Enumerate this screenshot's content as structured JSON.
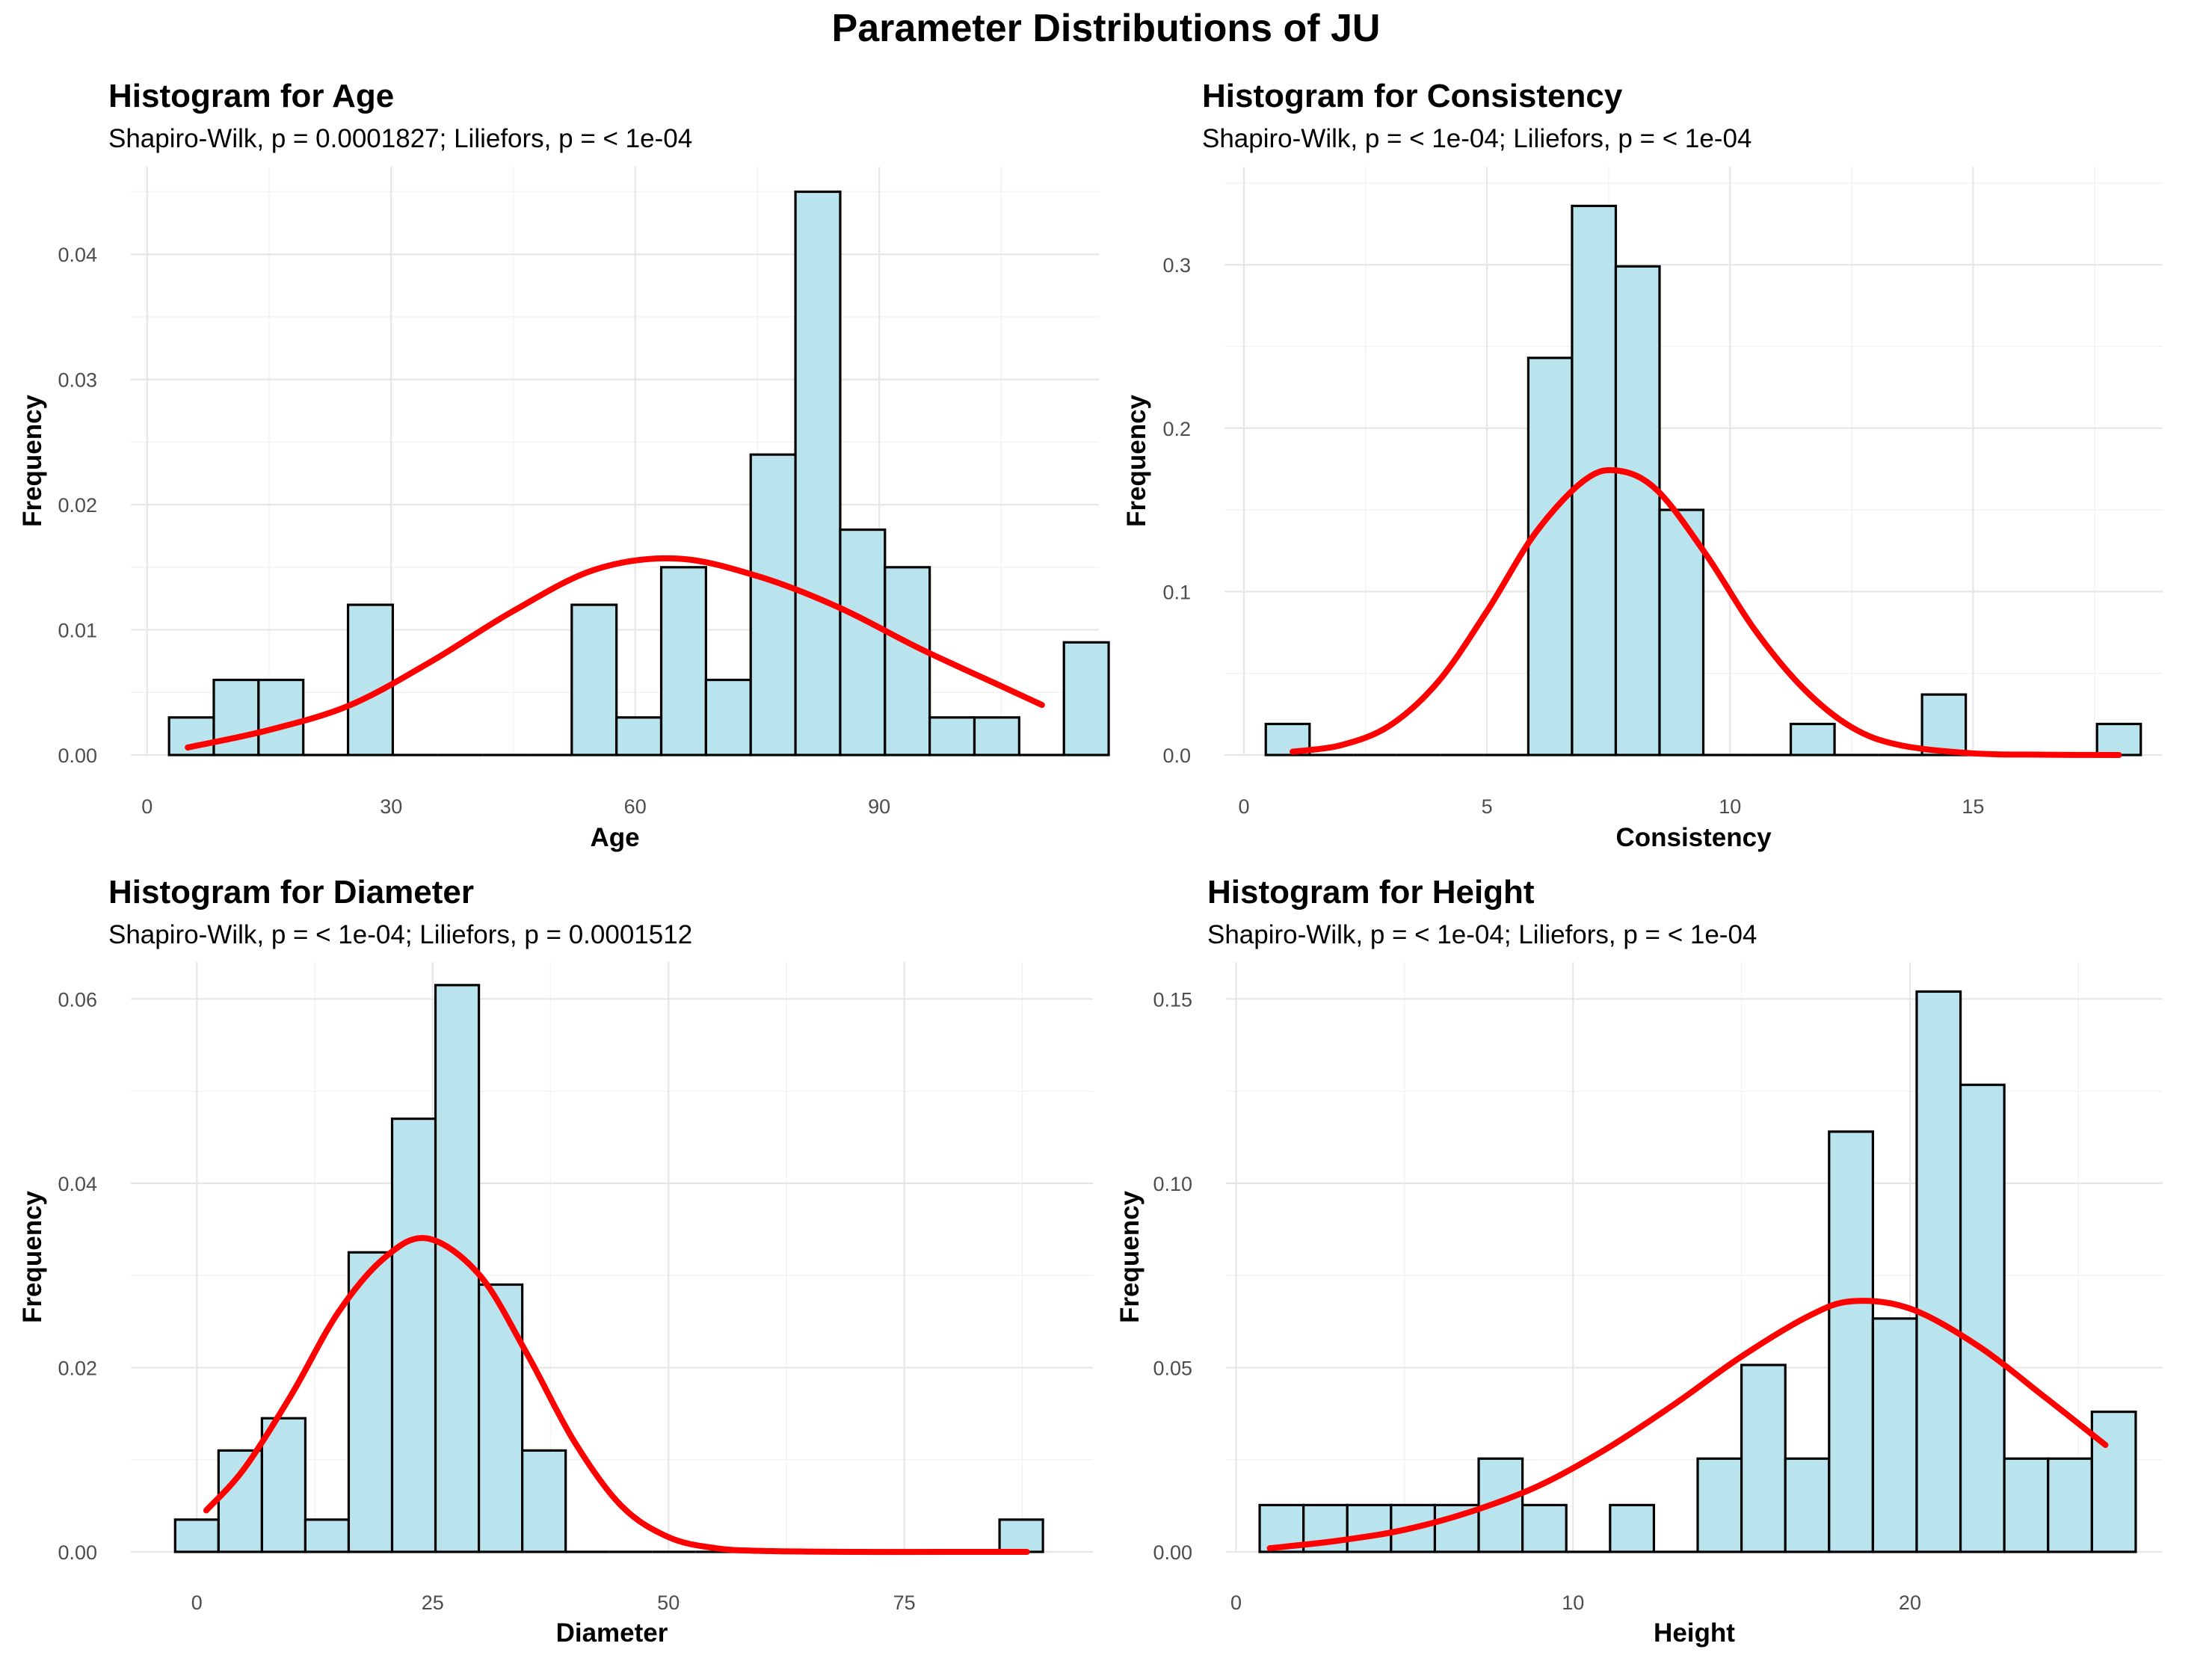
{
  "title": "Parameter Distributions of JU",
  "chart_data": [
    {
      "type": "bar",
      "title": "Histogram for Age",
      "subtitle": "Shapiro-Wilk, p = 0.0001827; Liliefors, p = < 1e-04",
      "xlabel": "Age",
      "ylabel": "Frequency",
      "xlim": [
        -2,
        117
      ],
      "ylim": [
        0,
        0.047
      ],
      "xticks": [
        0,
        30,
        60,
        90
      ],
      "yticks": [
        0.0,
        0.01,
        0.02,
        0.03,
        0.04
      ],
      "ytick_labels": [
        "0.00",
        "0.01",
        "0.02",
        "0.03",
        "0.04"
      ],
      "bin_start": 2.7,
      "bin_width": 5.5,
      "values": [
        0.003,
        0.006,
        0.006,
        0,
        0.012,
        0,
        0,
        0,
        0,
        0.012,
        0.003,
        0.015,
        0.006,
        0.024,
        0.045,
        0.018,
        0.015,
        0.003,
        0.003,
        0,
        0.009
      ],
      "density_x": [
        5,
        15,
        25,
        35,
        45,
        55,
        65,
        75,
        85,
        95,
        105,
        110
      ],
      "density_y": [
        0.0006,
        0.002,
        0.004,
        0.0075,
        0.0115,
        0.0148,
        0.0157,
        0.0143,
        0.0118,
        0.0085,
        0.0055,
        0.004
      ]
    },
    {
      "type": "bar",
      "title": "Histogram for Consistency",
      "subtitle": "Shapiro-Wilk, p = < 1e-04; Liliefors, p = < 1e-04",
      "xlabel": "Consistency",
      "ylabel": "Frequency",
      "xlim": [
        -0.4,
        18.9
      ],
      "ylim": [
        0,
        0.36
      ],
      "xticks": [
        0,
        5,
        10,
        15
      ],
      "yticks": [
        0.0,
        0.1,
        0.2,
        0.3
      ],
      "ytick_labels": [
        "0.0",
        "0.1",
        "0.2",
        "0.3"
      ],
      "bin_start": 0.45,
      "bin_width": 0.9,
      "values": [
        0.019,
        0,
        0,
        0,
        0,
        0,
        0.243,
        0.336,
        0.299,
        0.15,
        0,
        0,
        0.019,
        0,
        0,
        0.037,
        0,
        0,
        0,
        0.019
      ],
      "density_x": [
        1,
        2,
        3,
        4,
        5,
        6,
        7,
        7.7,
        8.5,
        9.5,
        10.5,
        11.5,
        12.5,
        13.5,
        15,
        16.5,
        18
      ],
      "density_y": [
        0.002,
        0.006,
        0.018,
        0.045,
        0.088,
        0.136,
        0.168,
        0.174,
        0.162,
        0.123,
        0.077,
        0.041,
        0.017,
        0.006,
        0.001,
        0.0002,
        0.0
      ]
    },
    {
      "type": "bar",
      "title": "Histogram for Diameter",
      "subtitle": "Shapiro-Wilk, p = < 1e-04; Liliefors, p = 0.0001512",
      "xlabel": "Diameter",
      "ylabel": "Frequency",
      "xlim": [
        -7,
        95
      ],
      "ylim": [
        0,
        0.064
      ],
      "xticks": [
        0,
        25,
        50,
        75
      ],
      "yticks": [
        0.0,
        0.02,
        0.04,
        0.06
      ],
      "ytick_labels": [
        "0.00",
        "0.02",
        "0.04",
        "0.06"
      ],
      "bin_start": -2.3,
      "bin_width": 4.6,
      "values": [
        0.0035,
        0.011,
        0.0145,
        0.0035,
        0.0325,
        0.047,
        0.0615,
        0.029,
        0.011,
        0,
        0,
        0,
        0,
        0,
        0,
        0,
        0,
        0,
        0,
        0.0035
      ],
      "density_x": [
        1,
        5,
        10,
        15,
        20,
        24.5,
        30,
        35,
        40,
        45,
        50,
        55,
        60,
        70,
        80,
        88
      ],
      "density_y": [
        0.0045,
        0.009,
        0.017,
        0.026,
        0.032,
        0.034,
        0.03,
        0.0215,
        0.012,
        0.005,
        0.0016,
        0.0004,
        0.0001,
        0.0,
        0.0,
        0.0
      ]
    },
    {
      "type": "bar",
      "title": "Histogram for Height",
      "subtitle": "Shapiro-Wilk, p = < 1e-04; Liliefors, p = < 1e-04",
      "xlabel": "Height",
      "ylabel": "Frequency",
      "xlim": [
        -0.3,
        27.5
      ],
      "ylim": [
        0,
        0.16
      ],
      "xticks": [
        0,
        10,
        20
      ],
      "yticks": [
        0.0,
        0.05,
        0.1,
        0.15
      ],
      "ytick_labels": [
        "0.00",
        "0.05",
        "0.10",
        "0.15"
      ],
      "bin_start": 0.7,
      "bin_width": 1.3,
      "values": [
        0.0127,
        0.0127,
        0.0127,
        0.0127,
        0.0127,
        0.0253,
        0.0127,
        0,
        0.0127,
        0,
        0.0253,
        0.0507,
        0.0253,
        0.114,
        0.0633,
        0.152,
        0.1267,
        0.0253,
        0.0253,
        0.038
      ],
      "density_x": [
        1,
        3,
        5,
        7,
        9,
        11,
        13,
        15,
        17,
        18.3,
        20,
        22,
        24,
        25.8
      ],
      "density_y": [
        0.001,
        0.003,
        0.006,
        0.011,
        0.018,
        0.028,
        0.04,
        0.053,
        0.064,
        0.068,
        0.066,
        0.056,
        0.042,
        0.029
      ]
    }
  ]
}
